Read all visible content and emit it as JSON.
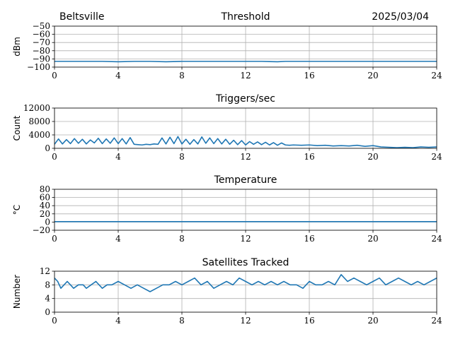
{
  "header": {
    "station": "Beltsville",
    "date": "2025/03/04"
  },
  "style": {
    "series_color": "#1f77b4",
    "grid_color": "#b0b0b0"
  },
  "chart_data": [
    {
      "type": "line",
      "title": "Threshold",
      "ylabel": "dBm",
      "xlim": [
        0,
        24
      ],
      "xticks": [
        0,
        4,
        8,
        12,
        16,
        20,
        24
      ],
      "ylim": [
        -100,
        -50
      ],
      "yticks": [
        -100,
        -90,
        -80,
        -70,
        -60,
        -50
      ],
      "yticklabels": [
        "−100",
        "−90",
        "−80",
        "−70",
        "−60",
        "−50"
      ],
      "grid": true,
      "series": [
        {
          "x": [
            0,
            1,
            2,
            3,
            4,
            5,
            6,
            7,
            8,
            9,
            10,
            11,
            12,
            13,
            14,
            14.5,
            15,
            16,
            17,
            18,
            19,
            20,
            21,
            22,
            23,
            24
          ],
          "y": [
            -93,
            -93,
            -93,
            -93,
            -93.5,
            -93,
            -93,
            -93.5,
            -93,
            -93,
            -93,
            -93,
            -93,
            -93,
            -93.5,
            -93,
            -93,
            -93,
            -93,
            -93,
            -93,
            -93,
            -93,
            -93,
            -93,
            -93
          ]
        }
      ]
    },
    {
      "type": "line",
      "title": "Triggers/sec",
      "ylabel": "Count",
      "xlim": [
        0,
        24
      ],
      "xticks": [
        0,
        4,
        8,
        12,
        16,
        20,
        24
      ],
      "ylim": [
        0,
        12000
      ],
      "yticks": [
        0,
        4000,
        8000,
        12000
      ],
      "yticklabels": [
        "0",
        "4000",
        "8000",
        "12000"
      ],
      "grid": true,
      "series": [
        {
          "x": [
            0,
            0.25,
            0.5,
            0.75,
            1,
            1.25,
            1.5,
            1.75,
            2,
            2.25,
            2.5,
            2.75,
            3,
            3.25,
            3.5,
            3.75,
            4,
            4.25,
            4.5,
            4.75,
            5,
            5.25,
            5.5,
            5.75,
            6,
            6.25,
            6.5,
            6.75,
            7,
            7.25,
            7.5,
            7.75,
            8,
            8.25,
            8.5,
            8.75,
            9,
            9.25,
            9.5,
            9.75,
            10,
            10.25,
            10.5,
            10.75,
            11,
            11.25,
            11.5,
            11.75,
            12,
            12.25,
            12.5,
            12.75,
            13,
            13.25,
            13.5,
            13.75,
            14,
            14.25,
            14.5,
            14.75,
            15,
            15.5,
            16,
            16.5,
            17,
            17.5,
            18,
            18.5,
            19,
            19.5,
            20,
            20.5,
            21,
            21.5,
            22,
            22.5,
            23,
            23.5,
            24
          ],
          "y": [
            1200,
            2800,
            1300,
            2600,
            1400,
            2900,
            1500,
            2700,
            1300,
            2500,
            1600,
            3000,
            1400,
            2800,
            1500,
            3100,
            1400,
            2900,
            1300,
            3200,
            1200,
            1100,
            1000,
            1200,
            1100,
            1300,
            1200,
            3100,
            1300,
            3300,
            1400,
            3500,
            1300,
            2700,
            1200,
            2600,
            1300,
            3400,
            1500,
            3100,
            1400,
            2900,
            1300,
            2700,
            1200,
            2400,
            1100,
            2300,
            1000,
            2000,
            1200,
            1900,
            1100,
            1800,
            1000,
            1700,
            900,
            1600,
            1000,
            900,
            1000,
            900,
            1000,
            800,
            900,
            700,
            800,
            700,
            900,
            600,
            800,
            400,
            300,
            200,
            300,
            200,
            400,
            300,
            400
          ]
        }
      ]
    },
    {
      "type": "line",
      "title": "Temperature",
      "ylabel": "°C",
      "xlim": [
        0,
        24
      ],
      "xticks": [
        0,
        4,
        8,
        12,
        16,
        20,
        24
      ],
      "ylim": [
        -20,
        80
      ],
      "yticks": [
        -20,
        0,
        20,
        40,
        60,
        80
      ],
      "yticklabels": [
        "−20",
        "0",
        "20",
        "40",
        "60",
        "80"
      ],
      "grid": true,
      "series": [
        {
          "x": [
            0,
            24
          ],
          "y": [
            1,
            1
          ]
        }
      ]
    },
    {
      "type": "line",
      "title": "Satellites Tracked",
      "ylabel": "Number",
      "xlim": [
        0,
        24
      ],
      "xticks": [
        0,
        4,
        8,
        12,
        16,
        20,
        24
      ],
      "ylim": [
        0,
        12
      ],
      "yticks": [
        0,
        4,
        8,
        12
      ],
      "yticklabels": [
        "0",
        "4",
        "8",
        "12"
      ],
      "grid": true,
      "series": [
        {
          "x": [
            0,
            0.2,
            0.4,
            0.6,
            0.8,
            1,
            1.2,
            1.5,
            1.8,
            2,
            2.3,
            2.6,
            3,
            3.3,
            3.6,
            4,
            4.4,
            4.8,
            5.2,
            5.6,
            6,
            6.4,
            6.8,
            7.2,
            7.6,
            8,
            8.4,
            8.8,
            9.2,
            9.6,
            10,
            10.4,
            10.8,
            11.2,
            11.6,
            12,
            12.4,
            12.8,
            13.2,
            13.6,
            14,
            14.4,
            14.8,
            15.2,
            15.6,
            16,
            16.4,
            16.8,
            17.2,
            17.6,
            18,
            18.4,
            18.8,
            19.2,
            19.6,
            20,
            20.4,
            20.8,
            21.2,
            21.6,
            22,
            22.4,
            22.8,
            23.2,
            23.6,
            24
          ],
          "y": [
            10,
            9,
            7,
            8,
            9,
            8,
            7,
            8,
            8,
            7,
            8,
            9,
            7,
            8,
            8,
            9,
            8,
            7,
            8,
            7,
            6,
            7,
            8,
            8,
            9,
            8,
            9,
            10,
            8,
            9,
            7,
            8,
            9,
            8,
            10,
            9,
            8,
            9,
            8,
            9,
            8,
            9,
            8,
            8,
            7,
            9,
            8,
            8,
            9,
            8,
            11,
            9,
            10,
            9,
            8,
            9,
            10,
            8,
            9,
            10,
            9,
            8,
            9,
            8,
            9,
            10
          ]
        }
      ]
    }
  ]
}
